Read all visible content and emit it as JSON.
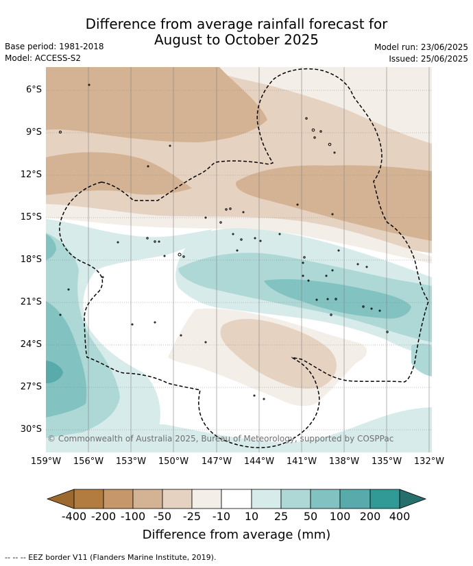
{
  "title_line1": "Difference from average rainfall forecast for",
  "title_line2": "August to October 2025",
  "base_period": "Base period: 1981-2018",
  "model": "Model: ACCESS-S2",
  "model_run": "Model run: 23/06/2025",
  "issued": "Issued: 25/06/2025",
  "lat_labels": [
    "6°S",
    "9°S",
    "12°S",
    "15°S",
    "18°S",
    "21°S",
    "24°S",
    "27°S",
    "30°S"
  ],
  "lon_labels": [
    "159°W",
    "156°W",
    "153°W",
    "150°W",
    "147°W",
    "144°W",
    "141°W",
    "138°W",
    "135°W",
    "132°W"
  ],
  "credit": "© Commonwealth of Australia 2025, Bureau of Meteorology, supported by COSPPac",
  "colorbar": {
    "title": "Difference from average (mm)",
    "ticks": [
      "-400",
      "-200",
      "-100",
      "-50",
      "-25",
      "-10",
      "10",
      "25",
      "50",
      "100",
      "200",
      "400"
    ],
    "colors": {
      "under": "#9c6a2e",
      "bins": [
        "#b27b40",
        "#c6976b",
        "#d4b394",
        "#e6d2c1",
        "#f3eee7",
        "#ffffff",
        "#d7ecea",
        "#add8d6",
        "#82c2c1",
        "#59aaaa",
        "#319a97"
      ],
      "over": "#276f6c"
    }
  },
  "footer": "--  --  -- EEZ border V11 (Flanders Marine Institute, 2019)."
}
